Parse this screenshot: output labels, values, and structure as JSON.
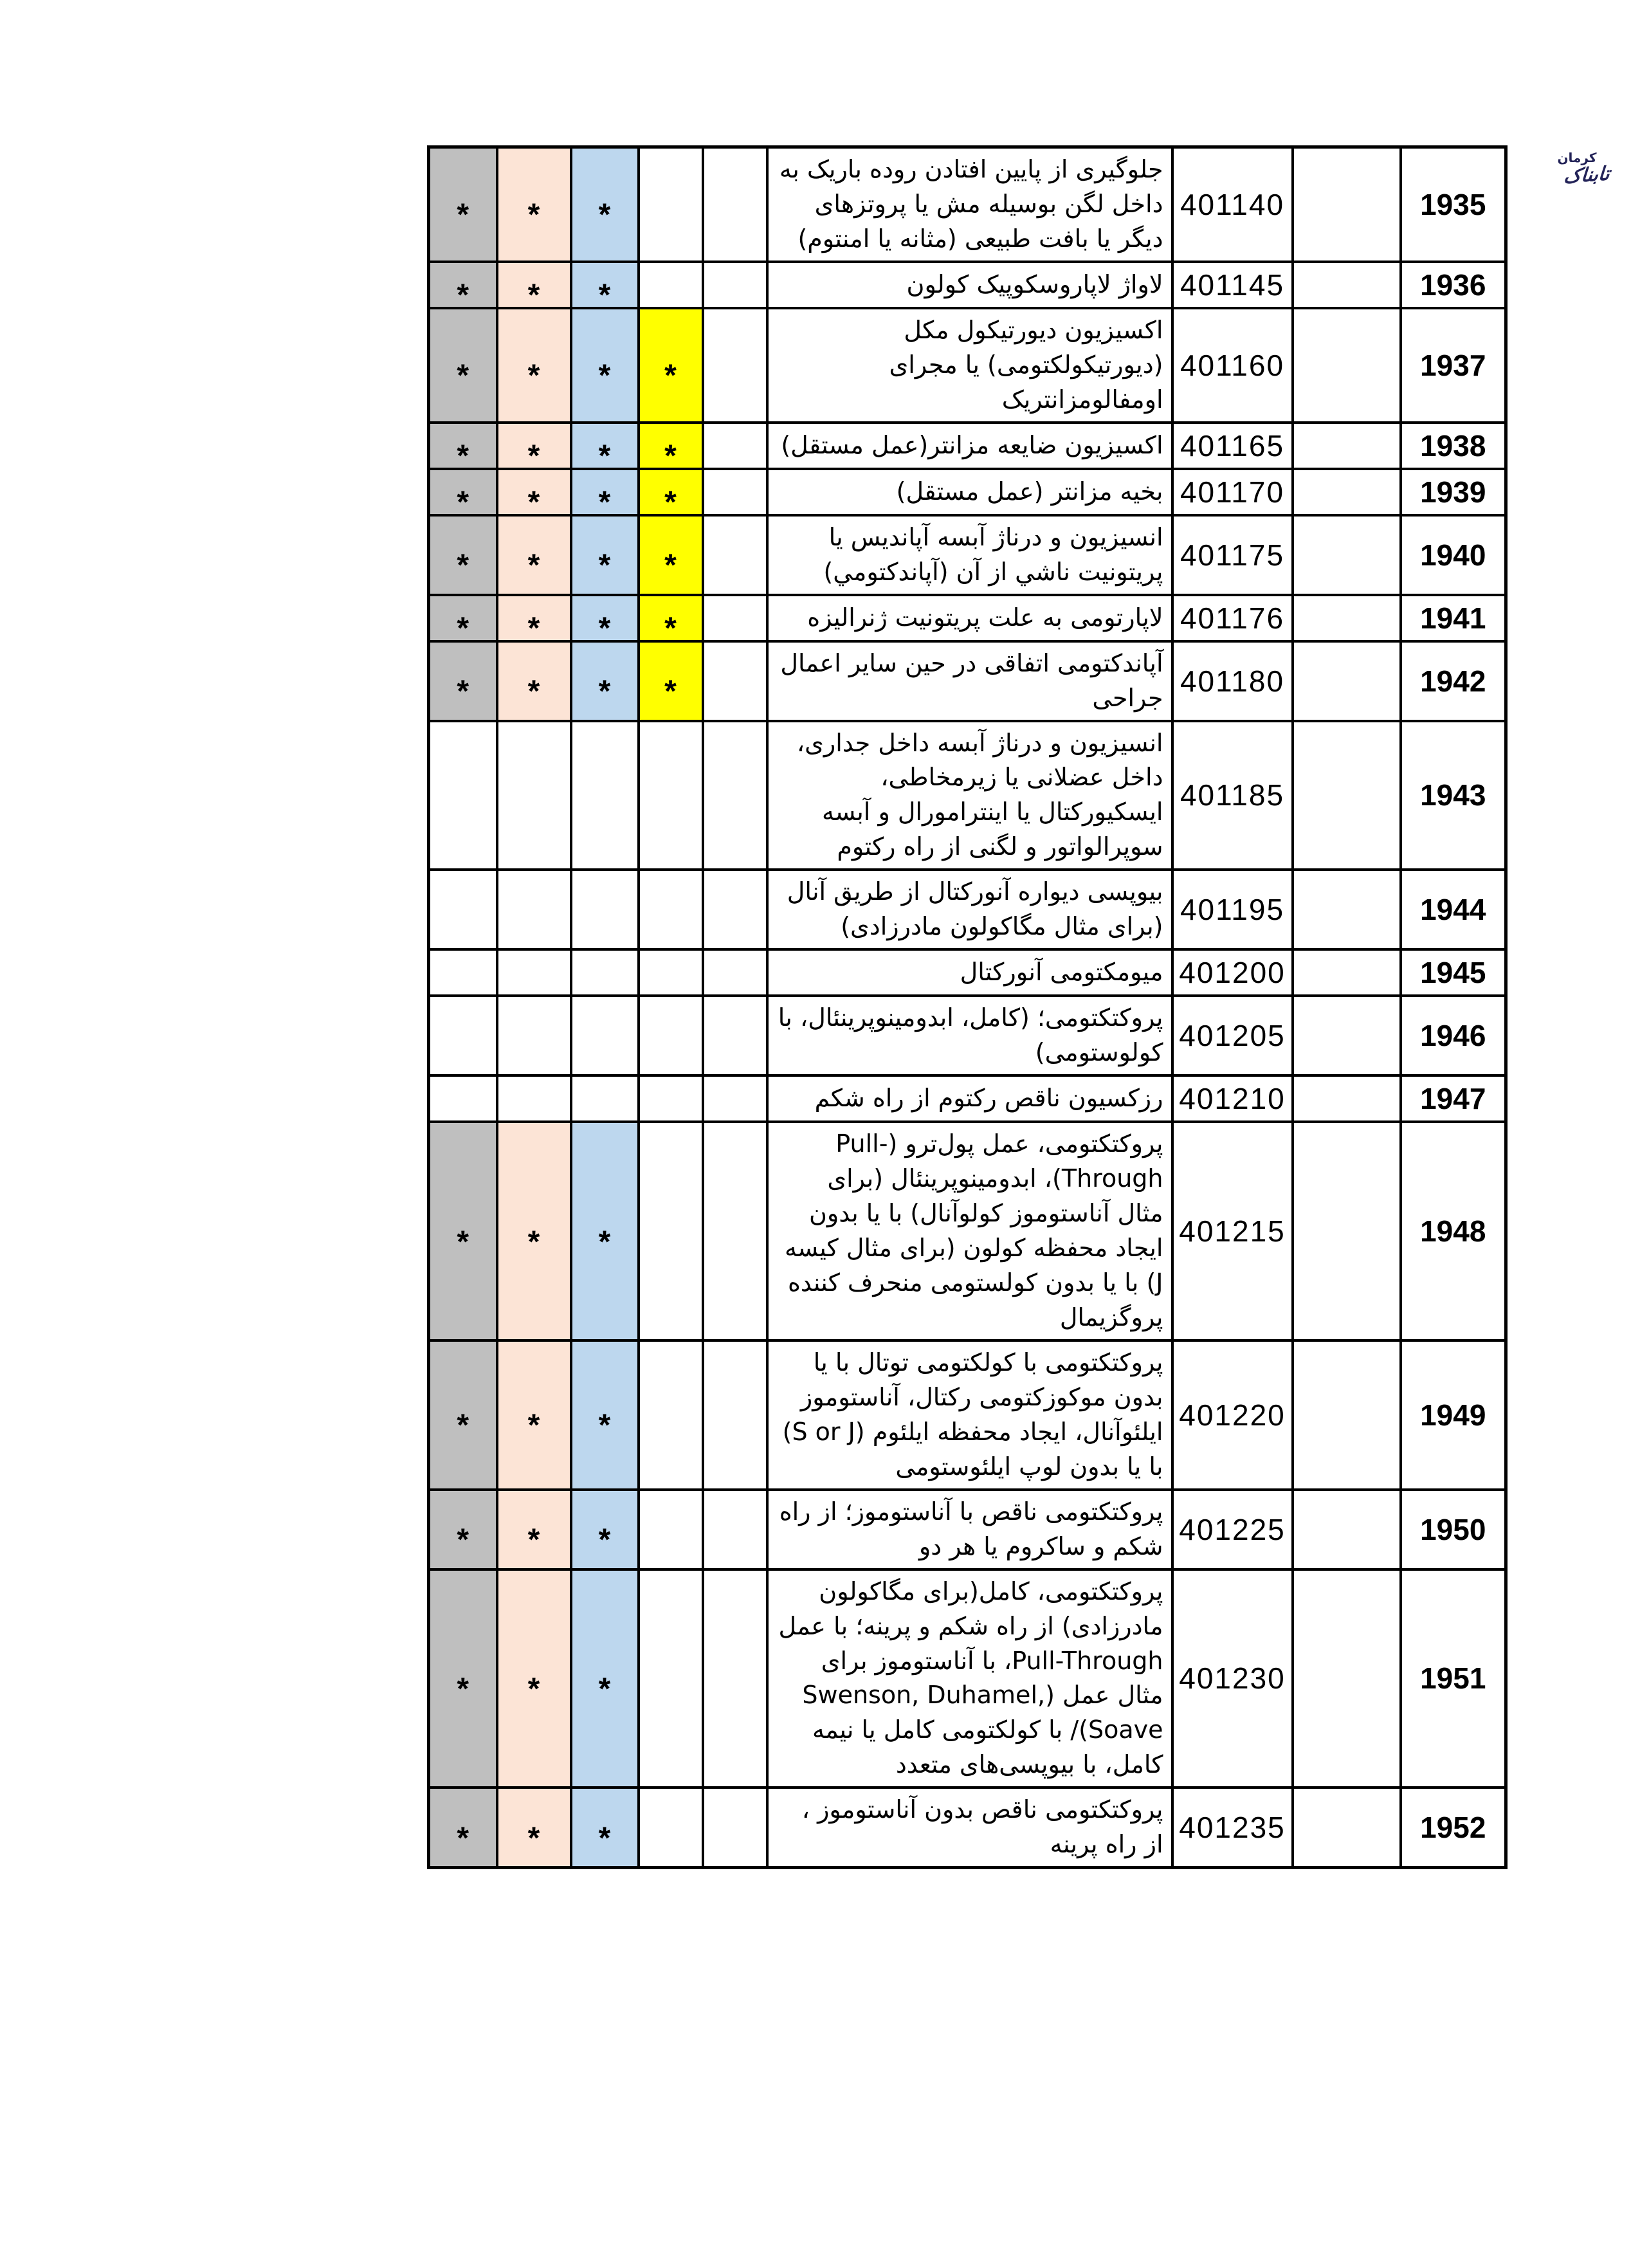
{
  "logo": {
    "region": "کرمان",
    "brand": "تابناک"
  },
  "table": {
    "star_symbol": "*",
    "star_colors": {
      "gray": "#bfbfbf",
      "peach": "#fce4d6",
      "blue": "#bdd7ee",
      "yellow": "#ffff00"
    },
    "rows": [
      {
        "num": "1935",
        "code": "401140",
        "desc": "جلوگیری از پایین افتادن روده باریک به داخل لگن بوسیله مش یا پروتزهای دیگر یا بافت طبیعی (مثانه یا امنتوم)",
        "stars": [
          "gray",
          "peach",
          "blue"
        ]
      },
      {
        "num": "1936",
        "code": "401145",
        "desc": "لاواژ لاپاروسکوپیک کولون",
        "stars": [
          "gray",
          "peach",
          "blue"
        ]
      },
      {
        "num": "1937",
        "code": "401160",
        "desc": "اکسیزیون دیورتیکول مکل (دیورتیکولکتومی) یا مجرای اومفالومزانتریک",
        "stars": [
          "gray",
          "peach",
          "blue",
          "yellow"
        ]
      },
      {
        "num": "1938",
        "code": "401165",
        "desc": "اکسیزیون ضایعه مزانتر(عمل مستقل)",
        "stars": [
          "gray",
          "peach",
          "blue",
          "yellow"
        ]
      },
      {
        "num": "1939",
        "code": "401170",
        "desc": "بخیه مزانتر (عمل مستقل)",
        "stars": [
          "gray",
          "peach",
          "blue",
          "yellow"
        ]
      },
      {
        "num": "1940",
        "code": "401175",
        "desc": "انسیزیون و درناژ آبسه آپاندیس یا پریتونیت ناشي از آن (آپاندکتومي)",
        "stars": [
          "gray",
          "peach",
          "blue",
          "yellow"
        ]
      },
      {
        "num": "1941",
        "code": "401176",
        "desc": "لاپارتومی به علت پریتونیت ژنرالیزه",
        "stars": [
          "gray",
          "peach",
          "blue",
          "yellow"
        ]
      },
      {
        "num": "1942",
        "code": "401180",
        "desc": "آپاندکتومی اتفاقی در حین سایر اعمال جراحی",
        "stars": [
          "gray",
          "peach",
          "blue",
          "yellow"
        ]
      },
      {
        "num": "1943",
        "code": "401185",
        "desc": "انسیزیون و درناژ آبسه داخل جداری، داخل عضلانی یا زیرمخاطی، ایسکیورکتال یا اینترامورال و آبسه سوپرالواتور و لگنی از راه رکتوم",
        "stars": []
      },
      {
        "num": "1944",
        "code": "401195",
        "desc": "بیوپسی دیواره آنورکتال از طریق آنال (برای مثال مگاکولون مادرزادی)",
        "stars": []
      },
      {
        "num": "1945",
        "code": "401200",
        "desc": "میومکتومی آنورکتال",
        "stars": []
      },
      {
        "num": "1946",
        "code": "401205",
        "desc": "پروکتکتومی؛ (کامل، ابدومینوپرینئال، با کولوستومی)",
        "stars": []
      },
      {
        "num": "1947",
        "code": "401210",
        "desc": "رزکسیون ناقص رکتوم از راه شکم",
        "stars": []
      },
      {
        "num": "1948",
        "code": "401215",
        "desc": "پروکتکتومی، عمل پول‌ترو (Pull-Through)، ابدومینوپرینئال (برای مثال آناستوموز کولوآنال) با یا بدون ایجاد محفظه کولون (برای مثال کیسه J) با یا بدون کولستومی منحرف کننده پروگزیمال",
        "stars": [
          "gray",
          "peach",
          "blue"
        ]
      },
      {
        "num": "1949",
        "code": "401220",
        "desc": "پروکتکتومی با کولکتومی توتال با یا بدون موکوزکتومی رکتال، آناستوموز ایلئوآنال، ایجاد محفظه ایلئوم (S or J) با یا بدون لوپ ایلئوستومی",
        "stars": [
          "gray",
          "peach",
          "blue"
        ]
      },
      {
        "num": "1950",
        "code": "401225",
        "desc": "پروکتکتومی ناقص با آناستوموز؛ از راه شکم و ساکروم یا هر دو",
        "stars": [
          "gray",
          "peach",
          "blue"
        ]
      },
      {
        "num": "1951",
        "code": "401230",
        "desc": "پروکتکتومی، کامل(برای مگاکولون مادرزادی) از راه شکم و پرینه؛ با عمل Pull-Through، با آناستوموز برای مثال عمل (Swenson, Duhamel, Soave)/ با کولکتومی کامل یا نیمه کامل، با بیوپسی‌های متعدد",
        "stars": [
          "gray",
          "peach",
          "blue"
        ]
      },
      {
        "num": "1952",
        "code": "401235",
        "desc": "پروکتکتومی ناقص بدون آناستوموز ، از راه پرینه",
        "stars": [
          "gray",
          "peach",
          "blue"
        ]
      }
    ]
  }
}
